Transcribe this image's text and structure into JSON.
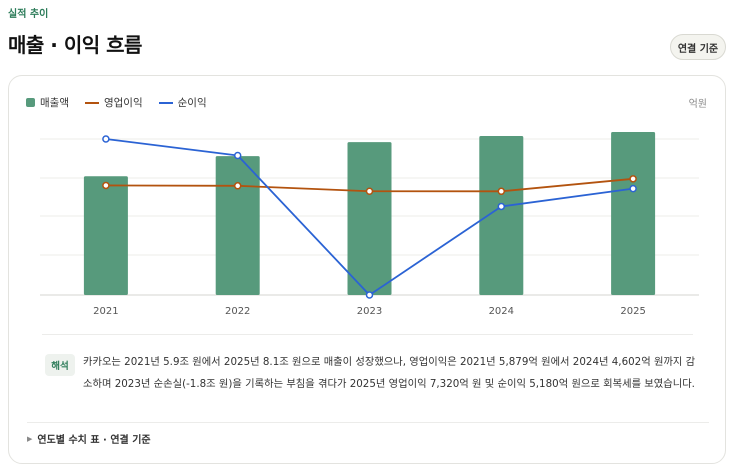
{
  "header": {
    "eyebrow": "실적 추이",
    "title": "매출 · 이익 흐름",
    "basis_button": "연결 기준"
  },
  "legend": [
    {
      "label": "매출액",
      "kind": "bar",
      "color": "#579a7c"
    },
    {
      "label": "영업이익",
      "kind": "line",
      "color": "#b3530f"
    },
    {
      "label": "순이익",
      "kind": "line",
      "color": "#2b63d4"
    }
  ],
  "unit_label": "억원",
  "chart_data": {
    "type": "bar",
    "categories": [
      "2021",
      "2022",
      "2023",
      "2024",
      "2025"
    ],
    "series": [
      {
        "name": "매출액",
        "kind": "bar",
        "color": "#579a7c",
        "values": [
          59000,
          69000,
          76000,
          79000,
          81000
        ]
      },
      {
        "name": "영업이익",
        "kind": "line",
        "color": "#b3530f",
        "values": [
          5879,
          5800,
          4610,
          4602,
          7320
        ]
      },
      {
        "name": "순이익",
        "kind": "line",
        "color": "#2b63d4",
        "values": [
          16000,
          12400,
          -18000,
          1300,
          5180
        ]
      }
    ],
    "grid": true,
    "legend_position": "top-left"
  },
  "interpretation": {
    "badge": "해석",
    "text": "카카오는 2021년 5.9조 원에서 2025년 8.1조 원으로 매출이 성장했으나, 영업이익은 2021년 5,879억 원에서 2024년 4,602억 원까지 감소하며 2023년 순손실(-1.8조 원)을 기록하는 부침을 겪다가 2025년 영업이익 7,320억 원 및 순이익 5,180억 원으로 회복세를 보였습니다."
  },
  "table_toggle": {
    "label": "연도별 수치 표 · 연결 기준"
  }
}
